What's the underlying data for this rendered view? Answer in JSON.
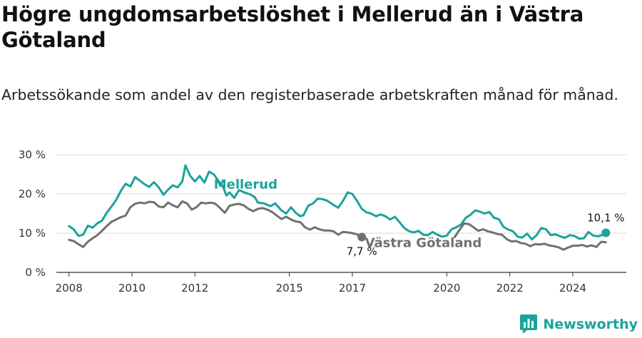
{
  "title": "Högre ungdomsarbetslöshet i Mellerud än i Västra Götaland",
  "subtitle": "Arbetssökande som andel av den registerbaserade arbetskraften månad för månad.",
  "brand": {
    "name": "Newsworthy",
    "icon": "newsworthy-logo-icon"
  },
  "colors": {
    "mellerud": "#1aa39a",
    "vastra": "#707070",
    "grid": "#d9d9d9",
    "axis": "#333333"
  },
  "chart_data": {
    "type": "line",
    "ylim": [
      0,
      30
    ],
    "yticks": [
      0,
      10,
      20,
      30
    ],
    "ytick_labels": [
      "0 %",
      "10 %",
      "20 %",
      "30 %"
    ],
    "xlim": [
      2007.6,
      2025.7
    ],
    "xticks": [
      2008,
      2010,
      2012,
      2015,
      2017,
      2020,
      2022,
      2024
    ],
    "xtick_labels": [
      "2008",
      "2010",
      "2012",
      "2015",
      "2017",
      "2020",
      "2022",
      "2024"
    ],
    "series": [
      {
        "name": "Mellerud",
        "color": "#1aa39a",
        "end_label": "10,1 %",
        "points": [
          [
            2008.0,
            11.8
          ],
          [
            2008.15,
            11.0
          ],
          [
            2008.3,
            9.3
          ],
          [
            2008.45,
            9.6
          ],
          [
            2008.6,
            11.9
          ],
          [
            2008.75,
            11.4
          ],
          [
            2008.9,
            12.5
          ],
          [
            2009.05,
            13.2
          ],
          [
            2009.2,
            15.2
          ],
          [
            2009.35,
            16.8
          ],
          [
            2009.5,
            18.5
          ],
          [
            2009.65,
            20.8
          ],
          [
            2009.8,
            22.6
          ],
          [
            2009.95,
            21.9
          ],
          [
            2010.1,
            24.3
          ],
          [
            2010.25,
            23.4
          ],
          [
            2010.4,
            22.5
          ],
          [
            2010.55,
            21.8
          ],
          [
            2010.7,
            23.0
          ],
          [
            2010.85,
            21.7
          ],
          [
            2011.0,
            19.8
          ],
          [
            2011.15,
            21.1
          ],
          [
            2011.3,
            22.2
          ],
          [
            2011.45,
            21.7
          ],
          [
            2011.6,
            23.2
          ],
          [
            2011.7,
            27.3
          ],
          [
            2011.85,
            24.6
          ],
          [
            2012.0,
            23.2
          ],
          [
            2012.15,
            24.6
          ],
          [
            2012.3,
            22.9
          ],
          [
            2012.45,
            25.7
          ],
          [
            2012.6,
            25.0
          ],
          [
            2012.75,
            23.3
          ],
          [
            2012.9,
            21.7
          ],
          [
            2013.0,
            19.6
          ],
          [
            2013.1,
            20.4
          ],
          [
            2013.25,
            19.0
          ],
          [
            2013.4,
            21.0
          ],
          [
            2013.6,
            20.3
          ],
          [
            2013.75,
            19.9
          ],
          [
            2013.9,
            19.2
          ],
          [
            2014.0,
            17.8
          ],
          [
            2014.2,
            17.6
          ],
          [
            2014.4,
            16.9
          ],
          [
            2014.55,
            17.6
          ],
          [
            2014.75,
            15.8
          ],
          [
            2014.9,
            15.0
          ],
          [
            2015.05,
            16.6
          ],
          [
            2015.2,
            15.2
          ],
          [
            2015.35,
            14.3
          ],
          [
            2015.45,
            14.6
          ],
          [
            2015.6,
            17.0
          ],
          [
            2015.75,
            17.6
          ],
          [
            2015.9,
            18.8
          ],
          [
            2016.05,
            18.7
          ],
          [
            2016.2,
            18.3
          ],
          [
            2016.4,
            17.2
          ],
          [
            2016.55,
            16.5
          ],
          [
            2016.7,
            18.2
          ],
          [
            2016.85,
            20.4
          ],
          [
            2017.0,
            20.0
          ],
          [
            2017.15,
            18.2
          ],
          [
            2017.3,
            16.2
          ],
          [
            2017.45,
            15.3
          ],
          [
            2017.6,
            15.0
          ],
          [
            2017.75,
            14.3
          ],
          [
            2017.9,
            14.8
          ],
          [
            2018.05,
            14.3
          ],
          [
            2018.2,
            13.5
          ],
          [
            2018.35,
            14.2
          ],
          [
            2018.5,
            12.8
          ],
          [
            2018.65,
            11.3
          ],
          [
            2018.8,
            10.5
          ],
          [
            2018.95,
            10.2
          ],
          [
            2019.1,
            10.6
          ],
          [
            2019.25,
            9.6
          ],
          [
            2019.4,
            9.5
          ],
          [
            2019.55,
            10.3
          ],
          [
            2019.7,
            9.6
          ],
          [
            2019.85,
            9.1
          ],
          [
            2020.0,
            9.4
          ],
          [
            2020.15,
            11.0
          ],
          [
            2020.3,
            11.5
          ],
          [
            2020.45,
            12.2
          ],
          [
            2020.6,
            13.9
          ],
          [
            2020.75,
            14.7
          ],
          [
            2020.9,
            15.8
          ],
          [
            2021.05,
            15.5
          ],
          [
            2021.2,
            15.0
          ],
          [
            2021.35,
            15.4
          ],
          [
            2021.5,
            13.9
          ],
          [
            2021.65,
            13.6
          ],
          [
            2021.8,
            11.6
          ],
          [
            2021.95,
            10.9
          ],
          [
            2022.1,
            10.5
          ],
          [
            2022.25,
            9.1
          ],
          [
            2022.4,
            8.9
          ],
          [
            2022.55,
            9.9
          ],
          [
            2022.7,
            8.4
          ],
          [
            2022.85,
            9.5
          ],
          [
            2023.0,
            11.3
          ],
          [
            2023.15,
            11.0
          ],
          [
            2023.3,
            9.5
          ],
          [
            2023.45,
            9.7
          ],
          [
            2023.6,
            9.2
          ],
          [
            2023.75,
            8.8
          ],
          [
            2023.9,
            9.5
          ],
          [
            2024.05,
            9.3
          ],
          [
            2024.2,
            8.6
          ],
          [
            2024.35,
            8.7
          ],
          [
            2024.5,
            10.3
          ],
          [
            2024.65,
            9.4
          ],
          [
            2024.8,
            9.2
          ],
          [
            2024.95,
            9.6
          ],
          [
            2025.05,
            10.1
          ]
        ]
      },
      {
        "name": "Västra Götaland",
        "color": "#707070",
        "end_label": "7,7 %",
        "points": [
          [
            2008.0,
            8.3
          ],
          [
            2008.15,
            8.0
          ],
          [
            2008.3,
            7.2
          ],
          [
            2008.45,
            6.5
          ],
          [
            2008.6,
            7.8
          ],
          [
            2008.75,
            8.7
          ],
          [
            2008.9,
            9.5
          ],
          [
            2009.05,
            10.6
          ],
          [
            2009.2,
            11.8
          ],
          [
            2009.35,
            12.9
          ],
          [
            2009.5,
            13.5
          ],
          [
            2009.65,
            14.1
          ],
          [
            2009.8,
            14.5
          ],
          [
            2009.95,
            16.6
          ],
          [
            2010.1,
            17.5
          ],
          [
            2010.25,
            17.8
          ],
          [
            2010.4,
            17.6
          ],
          [
            2010.55,
            18.0
          ],
          [
            2010.7,
            17.9
          ],
          [
            2010.85,
            16.8
          ],
          [
            2011.0,
            16.6
          ],
          [
            2011.15,
            17.8
          ],
          [
            2011.3,
            17.1
          ],
          [
            2011.45,
            16.6
          ],
          [
            2011.6,
            18.1
          ],
          [
            2011.75,
            17.6
          ],
          [
            2011.9,
            16.0
          ],
          [
            2012.05,
            16.6
          ],
          [
            2012.2,
            17.8
          ],
          [
            2012.35,
            17.6
          ],
          [
            2012.5,
            17.8
          ],
          [
            2012.65,
            17.5
          ],
          [
            2012.8,
            16.4
          ],
          [
            2012.95,
            15.2
          ],
          [
            2013.1,
            17.0
          ],
          [
            2013.25,
            17.3
          ],
          [
            2013.4,
            17.5
          ],
          [
            2013.55,
            17.1
          ],
          [
            2013.7,
            16.2
          ],
          [
            2013.85,
            15.6
          ],
          [
            2014.0,
            16.2
          ],
          [
            2014.15,
            16.4
          ],
          [
            2014.3,
            16.0
          ],
          [
            2014.45,
            15.4
          ],
          [
            2014.6,
            14.5
          ],
          [
            2014.75,
            13.6
          ],
          [
            2014.9,
            14.2
          ],
          [
            2015.05,
            13.5
          ],
          [
            2015.2,
            13.0
          ],
          [
            2015.35,
            12.8
          ],
          [
            2015.5,
            11.5
          ],
          [
            2015.65,
            10.9
          ],
          [
            2015.8,
            11.5
          ],
          [
            2015.95,
            11.0
          ],
          [
            2016.1,
            10.7
          ],
          [
            2016.25,
            10.7
          ],
          [
            2016.4,
            10.5
          ],
          [
            2016.55,
            9.6
          ],
          [
            2016.7,
            10.3
          ],
          [
            2016.85,
            10.2
          ],
          [
            2017.0,
            10.0
          ],
          [
            2017.15,
            9.7
          ],
          [
            2017.3,
            9.0
          ]
        ]
      },
      {
        "name": "",
        "color": "#707070",
        "points": [
          [
            2020.25,
            9.0
          ],
          [
            2020.4,
            10.8
          ],
          [
            2020.55,
            12.5
          ],
          [
            2020.7,
            12.3
          ],
          [
            2020.85,
            11.5
          ],
          [
            2021.0,
            10.6
          ],
          [
            2021.15,
            11.0
          ],
          [
            2021.3,
            10.5
          ],
          [
            2021.45,
            10.2
          ],
          [
            2021.6,
            9.8
          ],
          [
            2021.75,
            9.6
          ],
          [
            2021.9,
            8.5
          ],
          [
            2022.05,
            7.9
          ],
          [
            2022.2,
            8.0
          ],
          [
            2022.35,
            7.5
          ],
          [
            2022.5,
            7.3
          ],
          [
            2022.65,
            6.7
          ],
          [
            2022.8,
            7.2
          ],
          [
            2022.95,
            7.1
          ],
          [
            2023.1,
            7.3
          ],
          [
            2023.25,
            6.9
          ],
          [
            2023.4,
            6.7
          ],
          [
            2023.55,
            6.4
          ],
          [
            2023.7,
            5.8
          ],
          [
            2023.85,
            6.3
          ],
          [
            2024.0,
            6.8
          ],
          [
            2024.15,
            6.8
          ],
          [
            2024.3,
            7.0
          ],
          [
            2024.45,
            6.6
          ],
          [
            2024.6,
            6.9
          ],
          [
            2024.75,
            6.5
          ],
          [
            2024.9,
            7.8
          ],
          [
            2025.05,
            7.7
          ]
        ]
      }
    ],
    "annotations": [
      {
        "text": "Mellerud",
        "series": "Mellerud",
        "at": [
          2012.6,
          21.4
        ]
      },
      {
        "text": "Västra Götaland",
        "series": "Västra Götaland",
        "at": [
          2017.4,
          6.5
        ]
      }
    ]
  }
}
